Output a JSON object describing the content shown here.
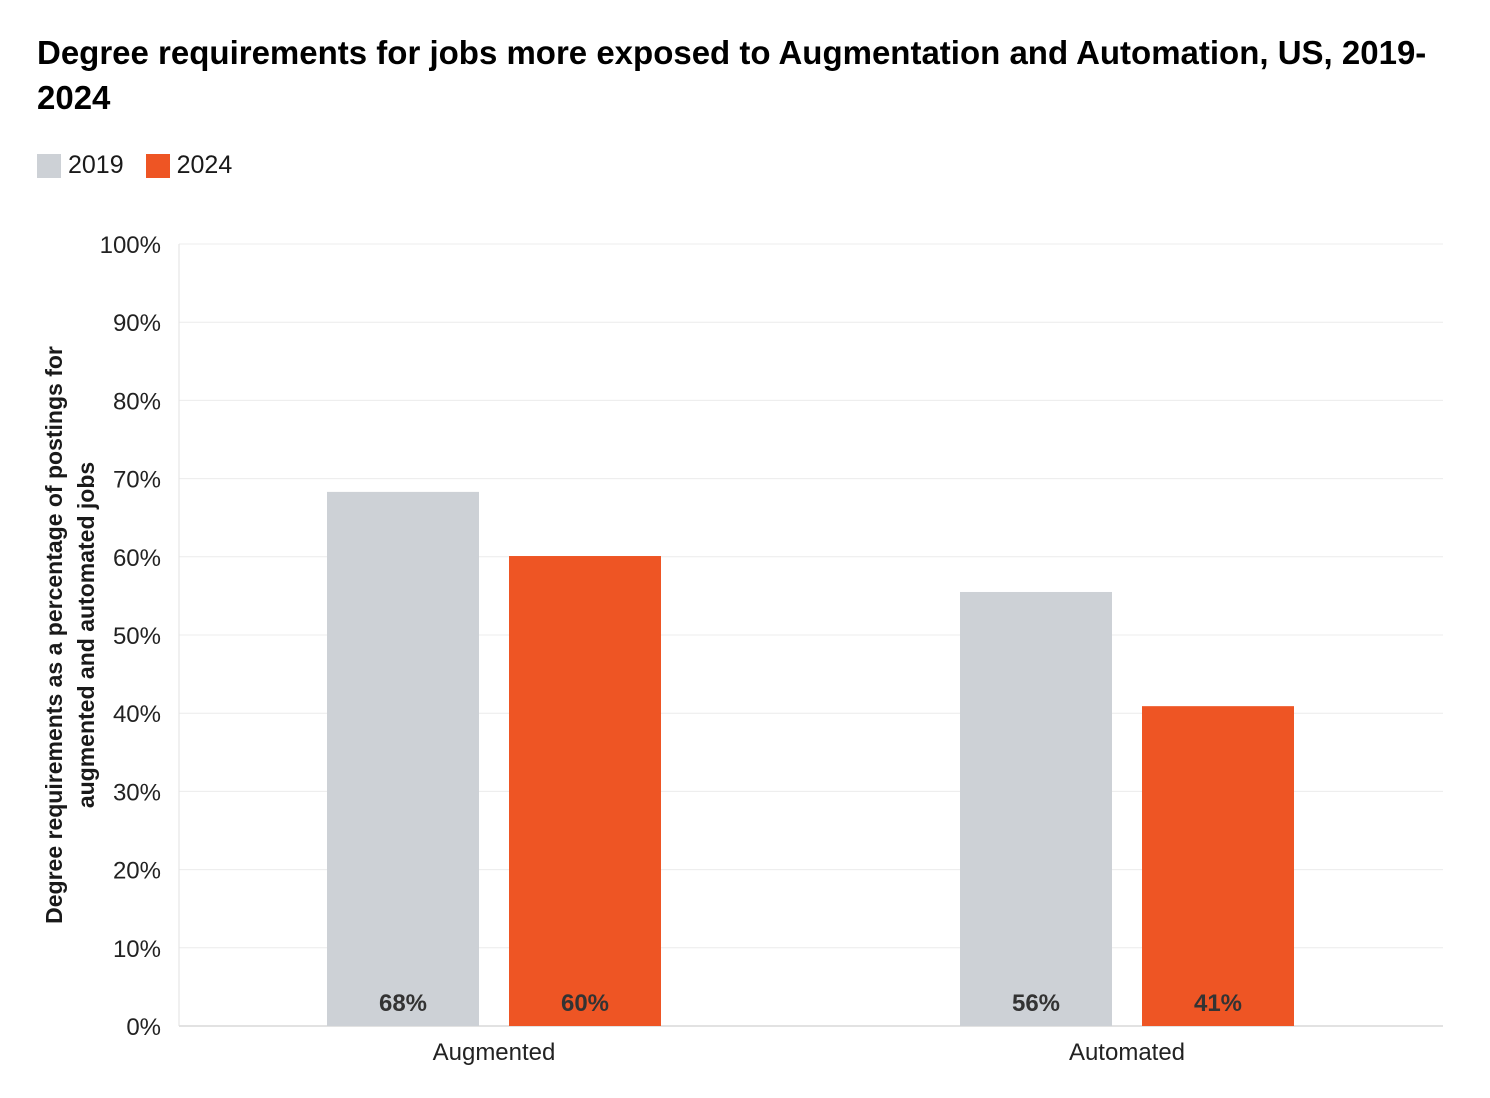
{
  "chart_data": {
    "type": "bar",
    "title": "Degree requirements for jobs more exposed to Augmentation and Automation, US, 2019-2024",
    "ylabel_lines": [
      "Degree requirements as a percentage of postings for",
      "augmented and automated jobs"
    ],
    "xlabel": "",
    "categories": [
      "Augmented",
      "Automated"
    ],
    "series": [
      {
        "name": "2019",
        "color": "#cdd1d6",
        "values": [
          68.3,
          55.5
        ],
        "labels": [
          "68%",
          "56%"
        ]
      },
      {
        "name": "2024",
        "color": "#ee5524",
        "values": [
          60.1,
          40.9
        ],
        "labels": [
          "60%",
          "41%"
        ]
      }
    ],
    "ylim": [
      0,
      100
    ],
    "yticks": [
      0,
      10,
      20,
      30,
      40,
      50,
      60,
      70,
      80,
      90,
      100
    ],
    "ytick_labels": [
      "0%",
      "10%",
      "20%",
      "30%",
      "40%",
      "50%",
      "60%",
      "70%",
      "80%",
      "90%",
      "100%"
    ],
    "grid": true,
    "legend_position": "top-left"
  }
}
